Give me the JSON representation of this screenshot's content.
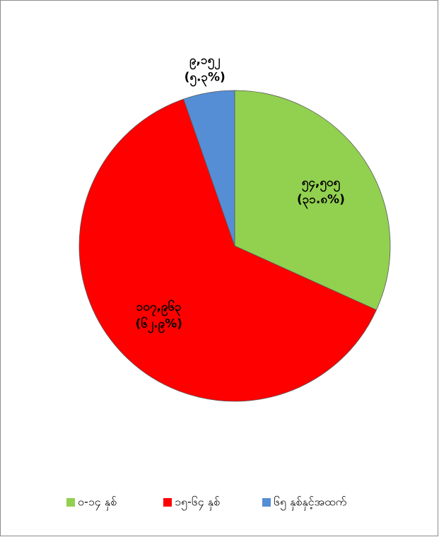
{
  "chart_data": {
    "type": "pie",
    "categories": [
      "၀-၁၄ နှစ်",
      "၁၅-၆၄ နှစ်",
      "၆၅ နှစ်နှင့်အထက်"
    ],
    "values": [
      54505,
      107963,
      9152
    ],
    "value_labels": [
      "၅၄,၅၀၅",
      "၁၀၇,၉၆၃",
      "၉,၁၅၂"
    ],
    "percents": [
      31.8,
      62.9,
      5.3
    ],
    "percent_labels": [
      "(၃၁.၈%)",
      "(၆၂.၉%)",
      "(၅.၃%)"
    ],
    "colors": [
      "#92d050",
      "#ff0000",
      "#558ed5"
    ],
    "legend": "bottom"
  }
}
